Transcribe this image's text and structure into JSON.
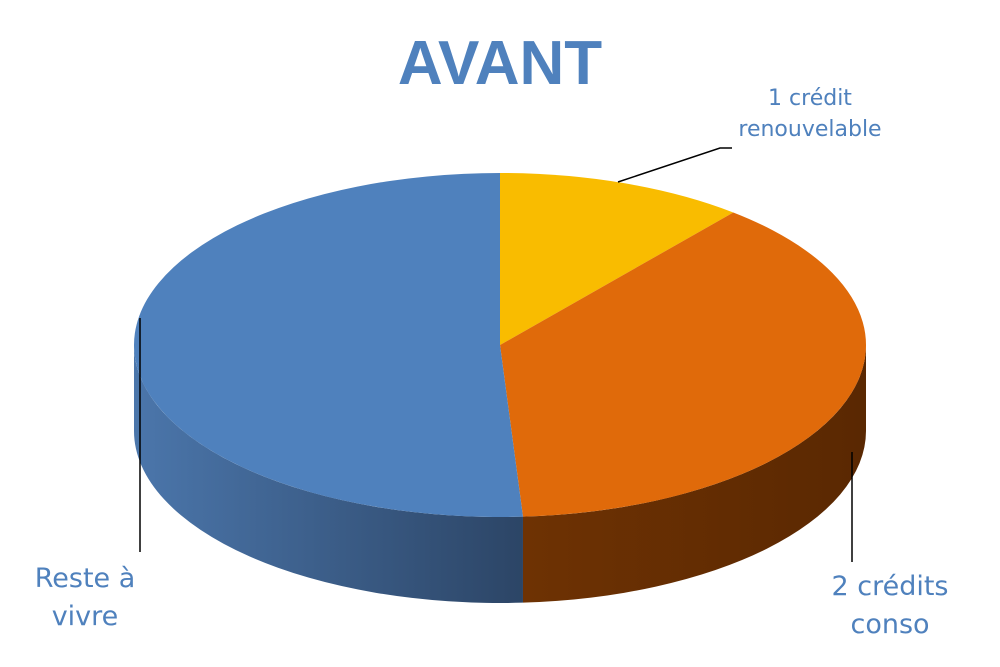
{
  "chart_data": {
    "type": "pie3d",
    "title": "AVANT",
    "categories": [
      "1 crédit renouvelable",
      "2 crédits conso",
      "Reste à vivre"
    ],
    "values": [
      11,
      38,
      51
    ],
    "colors": [
      "#f9bc00",
      "#e06a0a",
      "#4f81bd"
    ]
  }
}
